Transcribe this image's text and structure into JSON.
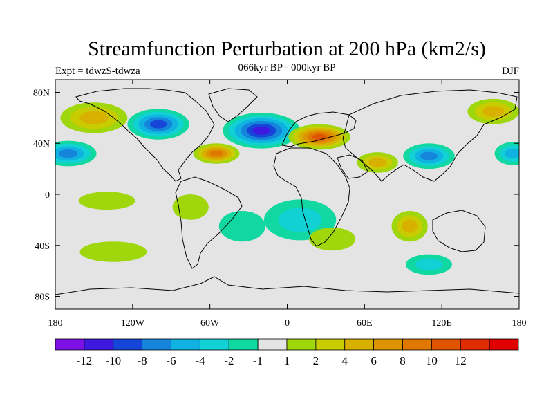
{
  "chart_data": {
    "type": "heatmap",
    "title": "Streamfunction Perturbation at 200 hPa (km2/s)",
    "subtitle": "066kyr BP - 000kyr BP",
    "left_label": "Expt = tdwzS-tdwza",
    "right_label": "DJF",
    "projection": "cylindrical-equidistant",
    "xlim": [
      -180,
      180
    ],
    "ylim": [
      -90,
      90
    ],
    "x_ticks": [
      {
        "value": -180,
        "label": "180"
      },
      {
        "value": -120,
        "label": "120W"
      },
      {
        "value": -60,
        "label": "60W"
      },
      {
        "value": 0,
        "label": "0"
      },
      {
        "value": 60,
        "label": "60E"
      },
      {
        "value": 120,
        "label": "120E"
      },
      {
        "value": 180,
        "label": "180"
      }
    ],
    "y_ticks": [
      {
        "value": 80,
        "label": "80N"
      },
      {
        "value": 40,
        "label": "40N"
      },
      {
        "value": 0,
        "label": "0"
      },
      {
        "value": -40,
        "label": "40S"
      },
      {
        "value": -80,
        "label": "80S"
      }
    ],
    "colorbar": {
      "colors": [
        "#7d10e6",
        "#3d18e0",
        "#1646d8",
        "#1585dc",
        "#0fb2e0",
        "#12d1d4",
        "#10d8a0",
        "#e4e4e4",
        "#a0d60c",
        "#c8cc00",
        "#d8b000",
        "#dc9400",
        "#e07800",
        "#e05400",
        "#e02c00",
        "#e00000"
      ],
      "labels": [
        {
          "boundary": 1,
          "text": "-12"
        },
        {
          "boundary": 2,
          "text": "-10"
        },
        {
          "boundary": 3,
          "text": "-8"
        },
        {
          "boundary": 4,
          "text": "-6"
        },
        {
          "boundary": 5,
          "text": "-4"
        },
        {
          "boundary": 6,
          "text": "-2"
        },
        {
          "boundary": 7,
          "text": "-1"
        },
        {
          "boundary": 8,
          "text": "1"
        },
        {
          "boundary": 9,
          "text": "2"
        },
        {
          "boundary": 10,
          "text": "4"
        },
        {
          "boundary": 11,
          "text": "6"
        },
        {
          "boundary": 12,
          "text": "8"
        },
        {
          "boundary": 13,
          "text": "10"
        },
        {
          "boundary": 14,
          "text": "12"
        }
      ]
    },
    "anomalies": [
      {
        "lon": -20,
        "lat": 50,
        "value": -12,
        "rx": 30,
        "ry": 14
      },
      {
        "lon": -100,
        "lat": 55,
        "value": -9,
        "rx": 24,
        "ry": 12
      },
      {
        "lon": -170,
        "lat": 32,
        "value": -7,
        "rx": 22,
        "ry": 10
      },
      {
        "lon": 110,
        "lat": 30,
        "value": -7,
        "rx": 20,
        "ry": 10
      },
      {
        "lon": 175,
        "lat": 32,
        "value": -6,
        "rx": 14,
        "ry": 9
      },
      {
        "lon": -55,
        "lat": 32,
        "value": 9,
        "rx": 18,
        "ry": 8
      },
      {
        "lon": 25,
        "lat": 45,
        "value": 11,
        "rx": 24,
        "ry": 10
      },
      {
        "lon": 70,
        "lat": 25,
        "value": 5,
        "rx": 16,
        "ry": 8
      },
      {
        "lon": -150,
        "lat": 60,
        "value": 6,
        "rx": 26,
        "ry": 12
      },
      {
        "lon": 160,
        "lat": 65,
        "value": 5,
        "rx": 20,
        "ry": 10
      },
      {
        "lon": 95,
        "lat": -25,
        "value": 5,
        "rx": 14,
        "ry": 12
      },
      {
        "lon": 10,
        "lat": -20,
        "value": -3,
        "rx": 28,
        "ry": 16
      },
      {
        "lon": -35,
        "lat": -25,
        "value": -2,
        "rx": 18,
        "ry": 12
      },
      {
        "lon": 110,
        "lat": -55,
        "value": -3,
        "rx": 18,
        "ry": 8
      },
      {
        "lon": -75,
        "lat": -10,
        "value": 2,
        "rx": 14,
        "ry": 10
      },
      {
        "lon": -135,
        "lat": -45,
        "value": 2,
        "rx": 26,
        "ry": 8
      },
      {
        "lon": -140,
        "lat": -5,
        "value": 2,
        "rx": 22,
        "ry": 7
      },
      {
        "lon": 35,
        "lat": -35,
        "value": 2,
        "rx": 18,
        "ry": 9
      }
    ]
  }
}
